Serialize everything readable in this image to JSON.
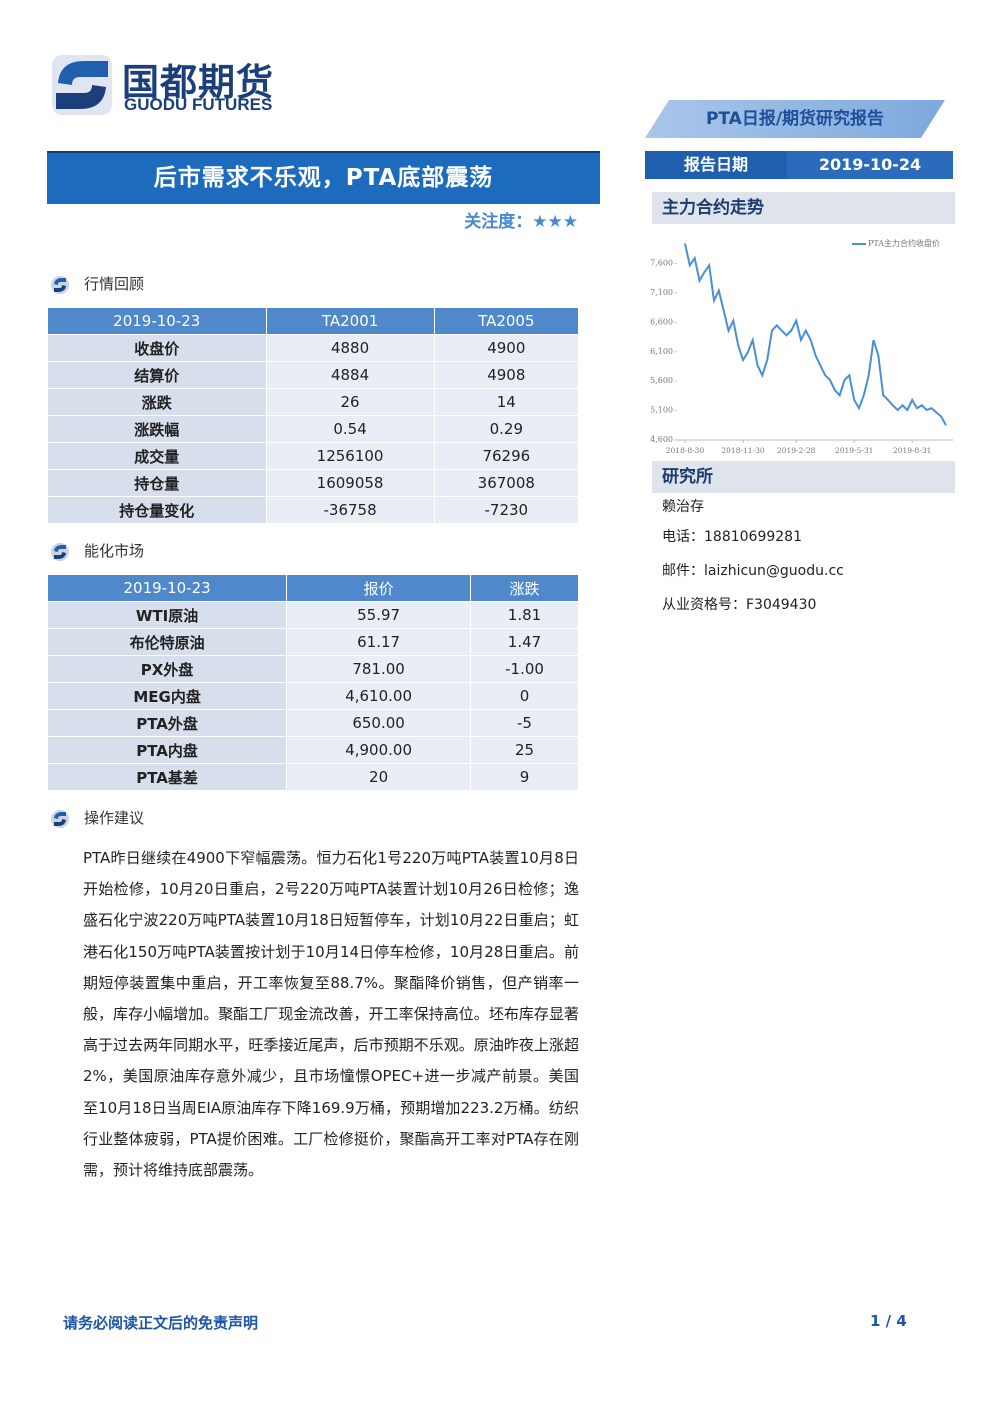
{
  "header": {
    "logo_cn": "国都期货",
    "logo_en": "GUODU FUTURES",
    "report_type": "PTA日报/期货研究报告",
    "date_label": "报告日期",
    "date": "2019-10-24"
  },
  "title": "后市需求不乐观，PTA底部震荡",
  "attention": {
    "label": "关注度：",
    "stars": "★★★"
  },
  "sections": [
    {
      "heading": "行情回顾",
      "table": {
        "header": [
          "2019-10-23",
          "TA2001",
          "TA2005"
        ],
        "rows": [
          [
            "收盘价",
            "4880",
            "4900"
          ],
          [
            "结算价",
            "4884",
            "4908"
          ],
          [
            "涨跌",
            "26",
            "14"
          ],
          [
            "涨跌幅",
            "0.54",
            "0.29"
          ],
          [
            "成交量",
            "1256100",
            "76296"
          ],
          [
            "持仓量",
            "1609058",
            "367008"
          ],
          [
            "持仓量变化",
            "-36758",
            "-7230"
          ]
        ]
      }
    },
    {
      "heading": "能化市场",
      "table": {
        "header": [
          "2019-10-23",
          "报价",
          "涨跌"
        ],
        "rows": [
          [
            "WTI原油",
            "55.97",
            "1.81"
          ],
          [
            "布伦特原油",
            "61.17",
            "1.47"
          ],
          [
            "PX外盘",
            "781.00",
            "-1.00"
          ],
          [
            "MEG内盘",
            "4,610.00",
            "0"
          ],
          [
            "PTA外盘",
            "650.00",
            "-5"
          ],
          [
            "PTA内盘",
            "4,900.00",
            "25"
          ],
          [
            "PTA基差",
            "20",
            "9"
          ]
        ]
      }
    },
    {
      "heading": "操作建议",
      "text": "PTA昨日继续在4900下窄幅震荡。恒力石化1号220万吨PTA装置10月8日开始检修，10月20日重启，2号220万吨PTA装置计划10月26日检修；逸盛石化宁波220万吨PTA装置10月18日短暂停车，计划10月22日重启；虹港石化150万吨PTA装置按计划于10月14日停车检修，10月28日重启。前期短停装置集中重启，开工率恢复至88.7%。聚酯降价销售，但产销率一般，库存小幅增加。聚酯工厂现金流改善，开工率保持高位。坯布库存显著高于过去两年同期水平，旺季接近尾声，后市预期不乐观。原油昨夜上涨超2%，美国原油库存意外减少，且市场憧憬OPEC+进一步减产前景。美国至10月18日当周EIA原油库存下降169.9万桶，预期增加223.2万桶。纺织行业整体疲弱，PTA提价困难。工厂检修挺价，聚酯高开工率对PTA存在刚需，预计将维持底部震荡。"
    }
  ],
  "sidebar": {
    "chart_heading": "主力合约走势",
    "chart_data": {
      "type": "line",
      "categories": [
        "2018-8-30",
        null,
        null,
        null,
        null,
        null,
        null,
        null,
        null,
        null,
        null,
        null,
        "2018-11-30",
        null,
        null,
        null,
        null,
        null,
        null,
        null,
        null,
        null,
        null,
        "2019-2-28",
        null,
        null,
        null,
        null,
        null,
        null,
        null,
        null,
        null,
        null,
        null,
        "2019-5-31",
        null,
        null,
        null,
        null,
        null,
        null,
        null,
        null,
        null,
        null,
        null,
        "2019-8-31",
        null,
        null,
        null,
        null,
        null,
        null,
        null
      ],
      "series": [
        {
          "name": "PTA主力合约收盘价",
          "color": "#4a8fd6",
          "values": [
            7940,
            7570,
            7690,
            7310,
            7450,
            7570,
            6970,
            7140,
            6800,
            6460,
            6630,
            6210,
            5960,
            6090,
            6300,
            5870,
            5700,
            5960,
            6460,
            6550,
            6460,
            6380,
            6460,
            6630,
            6300,
            6460,
            6300,
            6040,
            5870,
            5700,
            5620,
            5450,
            5360,
            5620,
            5700,
            5280,
            5140,
            5360,
            5700,
            6300,
            6040,
            5360,
            5280,
            5190,
            5110,
            5190,
            5110,
            5280,
            5140,
            5190,
            5110,
            5140,
            5070,
            5000,
            4850
          ]
        }
      ],
      "ylim": [
        4600,
        8000
      ],
      "yticks": [
        {
          "value": 4600,
          "label": "4,600"
        },
        {
          "value": 5100,
          "label": "5,100"
        },
        {
          "value": 5600,
          "label": "5,600"
        },
        {
          "value": 6100,
          "label": "6,100"
        },
        {
          "value": 6600,
          "label": "6,600"
        },
        {
          "value": 7100,
          "label": "7,100"
        },
        {
          "value": 7600,
          "label": "7,600"
        }
      ],
      "legend": "top-right"
    },
    "research_heading": "研究所",
    "contacts": [
      "赖治存",
      "电话：18810699281",
      "邮件：laizhicun@guodu.cc",
      "从业资格号：F3049430"
    ]
  },
  "footer": {
    "disclaimer": "请务必阅读正文后的免责声明",
    "page": "1 / 4"
  }
}
